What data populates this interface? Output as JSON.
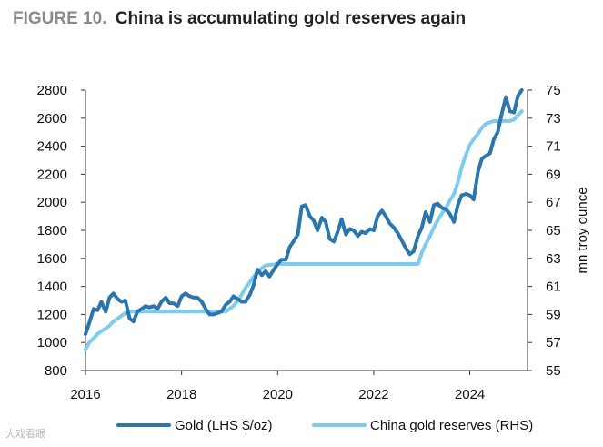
{
  "title": {
    "figure": "FIGURE 10.",
    "text": "China is accumulating gold reserves again"
  },
  "watermark": "大戏看眼",
  "colors": {
    "gold": "#2b77ad",
    "reserves": "#7ecbf0",
    "axis": "#333333"
  },
  "chart_data": {
    "type": "line",
    "title": "China is accumulating gold reserves again",
    "x_range": [
      2016,
      2025.2
    ],
    "x_ticks": [
      2016,
      2018,
      2020,
      2022,
      2024
    ],
    "left_axis": {
      "range": [
        800,
        2800
      ],
      "ticks": [
        800,
        1000,
        1200,
        1400,
        1600,
        1800,
        2000,
        2200,
        2400,
        2600,
        2800
      ],
      "label": ""
    },
    "right_axis": {
      "range": [
        55,
        75
      ],
      "ticks": [
        55,
        57,
        59,
        61,
        63,
        65,
        67,
        69,
        71,
        73,
        75
      ],
      "label": "mn troy ounce"
    },
    "legend": [
      "Gold  (LHS $/oz)",
      "China gold reserves (RHS)"
    ],
    "legend_position": "bottom",
    "series": [
      {
        "name": "Gold  (LHS $/oz)",
        "axis": "left",
        "x": [
          2016.0,
          2016.08,
          2016.17,
          2016.25,
          2016.33,
          2016.42,
          2016.5,
          2016.58,
          2016.67,
          2016.75,
          2016.83,
          2016.92,
          2017.0,
          2017.08,
          2017.17,
          2017.25,
          2017.33,
          2017.42,
          2017.5,
          2017.58,
          2017.67,
          2017.75,
          2017.83,
          2017.92,
          2018.0,
          2018.08,
          2018.17,
          2018.25,
          2018.33,
          2018.42,
          2018.5,
          2018.58,
          2018.67,
          2018.75,
          2018.83,
          2018.92,
          2019.0,
          2019.08,
          2019.17,
          2019.25,
          2019.33,
          2019.42,
          2019.5,
          2019.58,
          2019.67,
          2019.75,
          2019.83,
          2019.92,
          2020.0,
          2020.08,
          2020.17,
          2020.25,
          2020.33,
          2020.42,
          2020.5,
          2020.58,
          2020.67,
          2020.75,
          2020.83,
          2020.92,
          2021.0,
          2021.08,
          2021.17,
          2021.25,
          2021.33,
          2021.42,
          2021.5,
          2021.58,
          2021.67,
          2021.75,
          2021.83,
          2021.92,
          2022.0,
          2022.08,
          2022.17,
          2022.25,
          2022.33,
          2022.42,
          2022.5,
          2022.58,
          2022.67,
          2022.75,
          2022.83,
          2022.92,
          2023.0,
          2023.08,
          2023.17,
          2023.25,
          2023.33,
          2023.42,
          2023.5,
          2023.58,
          2023.67,
          2023.75,
          2023.83,
          2023.92,
          2024.0,
          2024.08,
          2024.17,
          2024.25,
          2024.33,
          2024.42,
          2024.5,
          2024.58,
          2024.67,
          2024.75,
          2024.83,
          2024.92,
          2025.0,
          2025.08
        ],
        "values": [
          1060,
          1140,
          1240,
          1230,
          1290,
          1220,
          1320,
          1350,
          1310,
          1290,
          1300,
          1170,
          1150,
          1220,
          1240,
          1260,
          1250,
          1260,
          1240,
          1290,
          1320,
          1280,
          1280,
          1260,
          1330,
          1350,
          1330,
          1320,
          1320,
          1290,
          1240,
          1200,
          1200,
          1210,
          1220,
          1270,
          1290,
          1330,
          1310,
          1290,
          1290,
          1340,
          1410,
          1520,
          1480,
          1510,
          1470,
          1520,
          1560,
          1590,
          1590,
          1680,
          1720,
          1770,
          1970,
          1980,
          1900,
          1870,
          1800,
          1890,
          1860,
          1740,
          1720,
          1790,
          1880,
          1770,
          1810,
          1800,
          1760,
          1790,
          1780,
          1810,
          1800,
          1900,
          1940,
          1900,
          1850,
          1820,
          1780,
          1730,
          1670,
          1630,
          1650,
          1760,
          1820,
          1930,
          1860,
          1980,
          1990,
          1960,
          1950,
          1920,
          1860,
          1980,
          2050,
          2060,
          2050,
          2020,
          2220,
          2310,
          2330,
          2350,
          2450,
          2500,
          2640,
          2750,
          2650,
          2640,
          2760,
          2800
        ]
      },
      {
        "name": "China gold reserves (RHS)",
        "axis": "right",
        "x": [
          2016.0,
          2016.08,
          2016.17,
          2016.25,
          2016.33,
          2016.42,
          2016.5,
          2016.58,
          2016.67,
          2016.75,
          2016.83,
          2016.92,
          2017.0,
          2017.2,
          2018.0,
          2018.5,
          2018.92,
          2019.0,
          2019.08,
          2019.17,
          2019.25,
          2019.33,
          2019.42,
          2019.5,
          2019.58,
          2019.67,
          2019.75,
          2020.0,
          2021.0,
          2022.0,
          2022.92,
          2023.0,
          2023.08,
          2023.17,
          2023.25,
          2023.33,
          2023.42,
          2023.5,
          2023.58,
          2023.67,
          2023.75,
          2023.83,
          2023.92,
          2024.0,
          2024.08,
          2024.17,
          2024.25,
          2024.33,
          2024.5,
          2024.75,
          2024.83,
          2024.92,
          2025.0,
          2025.08
        ],
        "values": [
          56.5,
          57.0,
          57.3,
          57.6,
          57.8,
          58.0,
          58.2,
          58.5,
          58.7,
          58.9,
          59.1,
          59.2,
          59.2,
          59.2,
          59.2,
          59.2,
          59.2,
          59.4,
          59.6,
          60.0,
          60.4,
          60.9,
          61.3,
          61.7,
          62.0,
          62.3,
          62.5,
          62.6,
          62.6,
          62.6,
          62.6,
          63.4,
          64.0,
          64.6,
          65.2,
          65.7,
          66.2,
          66.6,
          67.1,
          67.6,
          68.4,
          69.5,
          70.4,
          71.1,
          71.5,
          71.9,
          72.3,
          72.6,
          72.8,
          72.8,
          72.8,
          72.9,
          73.2,
          73.5
        ]
      }
    ]
  }
}
